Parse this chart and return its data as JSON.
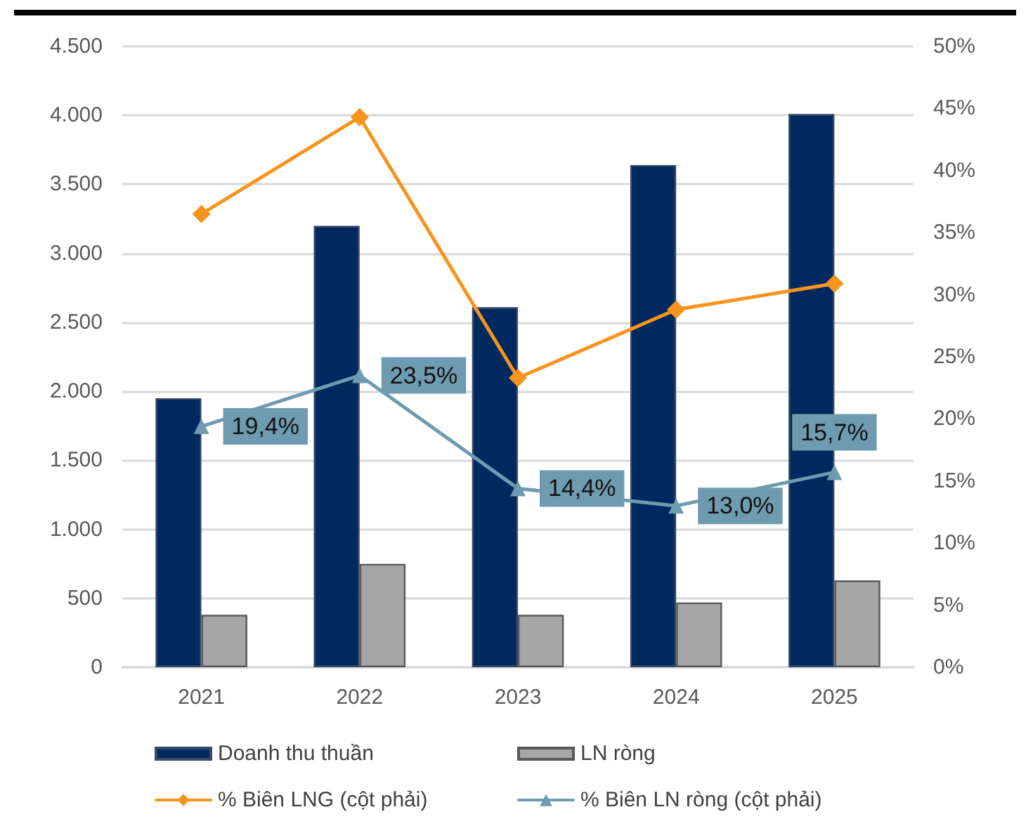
{
  "chart_data": {
    "type": "bar",
    "categories": [
      "2021",
      "2022",
      "2023",
      "2024",
      "2025"
    ],
    "series": [
      {
        "name": "Doanh thu thuần",
        "color": "#002960",
        "values": [
          1950,
          3200,
          2610,
          3640,
          4010
        ]
      },
      {
        "name": "LN ròng",
        "color": "#a6a6a6",
        "values": [
          380,
          750,
          380,
          470,
          630
        ]
      },
      {
        "name": "% Biên LNG (cột phải)",
        "type": "line",
        "axis": "y2",
        "color": "#f7941d",
        "marker": "diamond",
        "values": [
          36.5,
          44.3,
          23.3,
          28.8,
          30.9
        ]
      },
      {
        "name": "% Biên LN ròng (cột phải)",
        "type": "line",
        "axis": "y2",
        "color": "#6f9bb0",
        "marker": "triangle",
        "values": [
          19.4,
          23.5,
          14.4,
          13.0,
          15.7
        ],
        "value_labels": [
          "19,4%",
          "23,5%",
          "14,4%",
          "13,0%",
          "15,7%"
        ]
      }
    ],
    "ylim": [
      0,
      4500
    ],
    "yticks": [
      0,
      500,
      {
        "value": 1000,
        "label": "1.000"
      },
      {
        "value": 1500,
        "label": "1.500"
      },
      {
        "value": 2000,
        "label": "2.000"
      },
      {
        "value": 2500,
        "label": "2.500"
      },
      {
        "value": 3000,
        "label": "3.000"
      },
      {
        "value": 3500,
        "label": "3.500"
      },
      {
        "value": 4000,
        "label": "4.000"
      },
      {
        "value": 4500,
        "label": "4.500"
      }
    ],
    "y2lim": [
      0,
      50
    ],
    "y2ticks": [
      {
        "value": 0,
        "label": "0%"
      },
      {
        "value": 5,
        "label": "5%"
      },
      {
        "value": 10,
        "label": "10%"
      },
      {
        "value": 15,
        "label": "15%"
      },
      {
        "value": 20,
        "label": "20%"
      },
      {
        "value": 25,
        "label": "25%"
      },
      {
        "value": 30,
        "label": "30%"
      },
      {
        "value": 35,
        "label": "35%"
      },
      {
        "value": 40,
        "label": "40%"
      },
      {
        "value": 45,
        "label": "45%"
      },
      {
        "value": 50,
        "label": "50%"
      }
    ],
    "grid": "y",
    "legend": "bottom"
  }
}
